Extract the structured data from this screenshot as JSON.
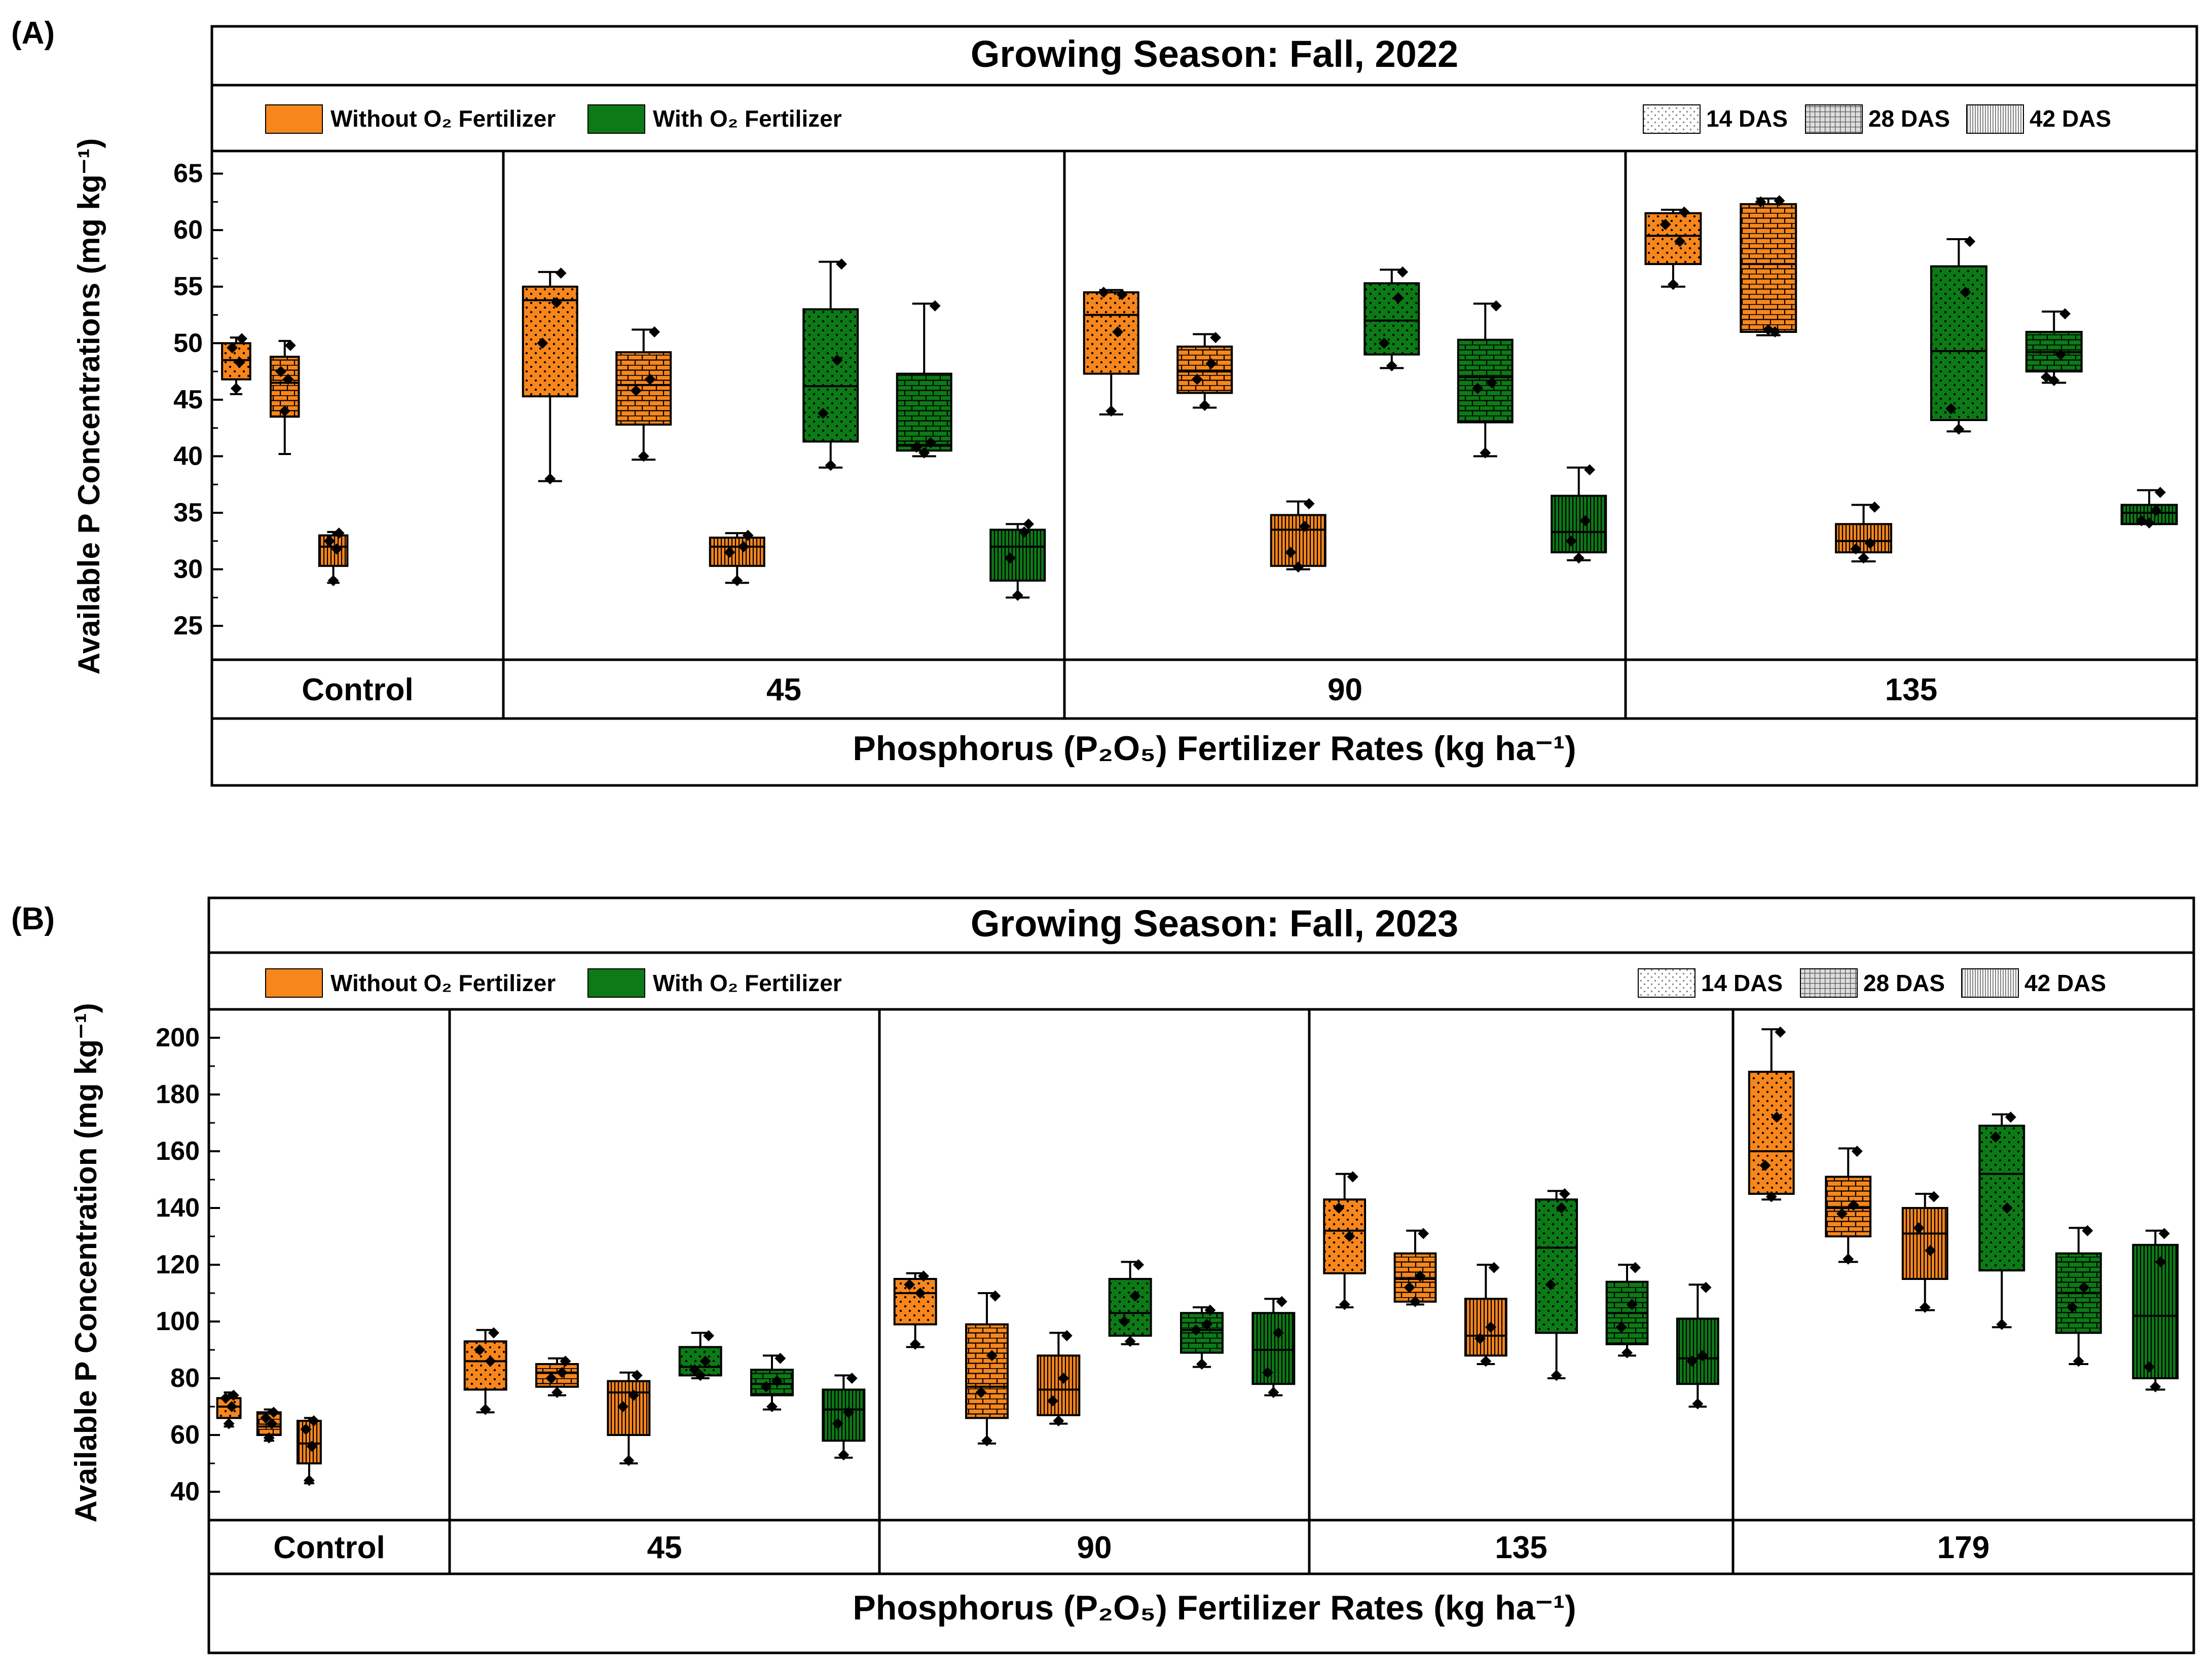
{
  "figure": {
    "colors": {
      "without": "#f7861c",
      "with": "#0c7a16",
      "stroke": "#000000",
      "frame": "#000000",
      "background": "#ffffff"
    },
    "legend_labels": {
      "without": "Without O₂ Fertilizer",
      "with": "With O₂ Fertilizer",
      "das14": "14 DAS",
      "das28": "28 DAS",
      "das42": "42 DAS"
    }
  },
  "chart_data": [
    {
      "type": "box",
      "panel_label": "(A)",
      "title": "Growing Season: Fall, 2022",
      "ylabel": "Available P Concentrations (mg kg⁻¹)",
      "xlabel": "Phosphorus (P₂O₅) Fertilizer Rates (kg ha⁻¹)",
      "ylim": [
        22,
        67
      ],
      "yticks": [
        25,
        30,
        35,
        40,
        45,
        50,
        55,
        60,
        65
      ],
      "groups": [
        {
          "label": "Control",
          "boxes": [
            {
              "fertilizer": "without",
              "das": "14 DAS",
              "min": 45.5,
              "q1": 46.8,
              "median": 48.5,
              "q3": 50.0,
              "max": 50.5,
              "points": [
                48.3,
                49.6,
                46.0,
                50.4
              ]
            },
            {
              "fertilizer": "without",
              "das": "28 DAS",
              "min": 40.2,
              "q1": 43.5,
              "median": 46.5,
              "q3": 48.8,
              "max": 50.2,
              "points": [
                46.8,
                47.5,
                44.0,
                49.8
              ]
            },
            {
              "fertilizer": "without",
              "das": "42 DAS",
              "min": 28.8,
              "q1": 30.3,
              "median": 32.0,
              "q3": 33.0,
              "max": 33.3,
              "points": [
                31.8,
                32.5,
                29.0,
                33.2
              ]
            }
          ]
        },
        {
          "label": "45",
          "boxes": [
            {
              "fertilizer": "without",
              "das": "14 DAS",
              "min": 37.8,
              "q1": 45.3,
              "median": 53.8,
              "q3": 55.0,
              "max": 56.3,
              "points": [
                53.6,
                50.0,
                38.0,
                56.2
              ]
            },
            {
              "fertilizer": "without",
              "das": "28 DAS",
              "min": 39.7,
              "q1": 42.8,
              "median": 46.3,
              "q3": 49.2,
              "max": 51.2,
              "points": [
                46.8,
                45.8,
                40.0,
                51.0
              ]
            },
            {
              "fertilizer": "without",
              "das": "42 DAS",
              "min": 28.8,
              "q1": 30.3,
              "median": 32.0,
              "q3": 32.8,
              "max": 33.2,
              "points": [
                32.0,
                31.5,
                29.0,
                33.0
              ]
            },
            {
              "fertilizer": "with",
              "das": "14 DAS",
              "min": 39.0,
              "q1": 41.3,
              "median": 46.2,
              "q3": 53.0,
              "max": 57.2,
              "points": [
                48.5,
                43.8,
                39.2,
                57.0
              ]
            },
            {
              "fertilizer": "with",
              "das": "28 DAS",
              "min": 40.0,
              "q1": 40.5,
              "median": 41.0,
              "q3": 47.3,
              "max": 53.5,
              "points": [
                41.2,
                40.8,
                40.3,
                53.3
              ]
            },
            {
              "fertilizer": "with",
              "das": "42 DAS",
              "min": 27.5,
              "q1": 29.0,
              "median": 32.0,
              "q3": 33.5,
              "max": 34.0,
              "points": [
                33.3,
                31.0,
                27.7,
                34.0
              ]
            }
          ]
        },
        {
          "label": "90",
          "boxes": [
            {
              "fertilizer": "without",
              "das": "14 DAS",
              "min": 43.7,
              "q1": 47.3,
              "median": 52.5,
              "q3": 54.5,
              "max": 54.7,
              "points": [
                51.0,
                54.5,
                44.0,
                54.3
              ]
            },
            {
              "fertilizer": "without",
              "das": "28 DAS",
              "min": 44.3,
              "q1": 45.6,
              "median": 47.5,
              "q3": 49.7,
              "max": 50.8,
              "points": [
                48.2,
                46.8,
                44.5,
                50.5
              ]
            },
            {
              "fertilizer": "without",
              "das": "42 DAS",
              "min": 30.0,
              "q1": 30.3,
              "median": 33.5,
              "q3": 34.8,
              "max": 36.0,
              "points": [
                33.8,
                31.5,
                30.2,
                35.8
              ]
            },
            {
              "fertilizer": "with",
              "das": "14 DAS",
              "min": 47.8,
              "q1": 49.0,
              "median": 52.0,
              "q3": 55.3,
              "max": 56.5,
              "points": [
                54.0,
                50.0,
                48.0,
                56.3
              ]
            },
            {
              "fertilizer": "with",
              "das": "28 DAS",
              "min": 40.0,
              "q1": 43.0,
              "median": 47.0,
              "q3": 50.3,
              "max": 53.5,
              "points": [
                46.5,
                46.0,
                40.3,
                53.3
              ]
            },
            {
              "fertilizer": "with",
              "das": "42 DAS",
              "min": 30.8,
              "q1": 31.5,
              "median": 33.3,
              "q3": 36.5,
              "max": 39.0,
              "points": [
                34.3,
                32.5,
                31.0,
                38.8
              ]
            }
          ]
        },
        {
          "label": "135",
          "boxes": [
            {
              "fertilizer": "without",
              "das": "14 DAS",
              "min": 55.0,
              "q1": 57.0,
              "median": 59.5,
              "q3": 61.5,
              "max": 61.8,
              "points": [
                59.0,
                60.5,
                55.2,
                61.6
              ]
            },
            {
              "fertilizer": "without",
              "das": "28 DAS",
              "min": 50.7,
              "q1": 51.0,
              "median": 57.0,
              "q3": 62.3,
              "max": 62.8,
              "points": [
                51.0,
                62.5,
                51.2,
                62.6
              ]
            },
            {
              "fertilizer": "without",
              "das": "42 DAS",
              "min": 30.7,
              "q1": 31.5,
              "median": 32.5,
              "q3": 34.0,
              "max": 35.7,
              "points": [
                32.3,
                31.8,
                31.0,
                35.5
              ]
            },
            {
              "fertilizer": "with",
              "das": "14 DAS",
              "min": 42.2,
              "q1": 43.2,
              "median": 49.3,
              "q3": 56.8,
              "max": 59.2,
              "points": [
                54.5,
                44.2,
                42.4,
                59.0
              ]
            },
            {
              "fertilizer": "with",
              "das": "28 DAS",
              "min": 46.5,
              "q1": 47.5,
              "median": 49.2,
              "q3": 51.0,
              "max": 52.8,
              "points": [
                49.0,
                47.0,
                46.7,
                52.6
              ]
            },
            {
              "fertilizer": "with",
              "das": "42 DAS",
              "min": 34.0,
              "q1": 34.0,
              "median": 35.0,
              "q3": 35.7,
              "max": 37.0,
              "points": [
                35.2,
                34.3,
                34.1,
                36.8
              ]
            }
          ]
        }
      ]
    },
    {
      "type": "box",
      "panel_label": "(B)",
      "title": "Growing Season: Fall, 2023",
      "ylabel": "Available P Concentration (mg kg⁻¹)",
      "xlabel": "Phosphorus (P₂O₅) Fertilizer Rates (kg ha⁻¹)",
      "ylim": [
        30,
        210
      ],
      "yticks": [
        40,
        60,
        80,
        100,
        120,
        140,
        160,
        180,
        200
      ],
      "groups": [
        {
          "label": "Control",
          "boxes": [
            {
              "fertilizer": "without",
              "das": "14 DAS",
              "min": 63,
              "q1": 66,
              "median": 70,
              "q3": 73,
              "max": 75,
              "points": [
                70,
                73,
                64,
                74
              ]
            },
            {
              "fertilizer": "without",
              "das": "28 DAS",
              "min": 58,
              "q1": 60,
              "median": 63,
              "q3": 68,
              "max": 69,
              "points": [
                64,
                66,
                59,
                68
              ]
            },
            {
              "fertilizer": "without",
              "das": "42 DAS",
              "min": 43,
              "q1": 50,
              "median": 57,
              "q3": 65,
              "max": 66,
              "points": [
                56,
                62,
                44,
                65
              ]
            }
          ]
        },
        {
          "label": "45",
          "boxes": [
            {
              "fertilizer": "without",
              "das": "14 DAS",
              "min": 68,
              "q1": 76,
              "median": 86,
              "q3": 93,
              "max": 97,
              "points": [
                86,
                90,
                69,
                96
              ]
            },
            {
              "fertilizer": "without",
              "das": "28 DAS",
              "min": 74,
              "q1": 77,
              "median": 82,
              "q3": 85,
              "max": 87,
              "points": [
                82,
                80,
                75,
                86
              ]
            },
            {
              "fertilizer": "without",
              "das": "42 DAS",
              "min": 50,
              "q1": 60,
              "median": 75,
              "q3": 79,
              "max": 82,
              "points": [
                74,
                70,
                51,
                81
              ]
            },
            {
              "fertilizer": "with",
              "das": "14 DAS",
              "min": 80,
              "q1": 81,
              "median": 84,
              "q3": 91,
              "max": 96,
              "points": [
                86,
                83,
                81,
                95
              ]
            },
            {
              "fertilizer": "with",
              "das": "28 DAS",
              "min": 69,
              "q1": 74,
              "median": 78,
              "q3": 83,
              "max": 88,
              "points": [
                79,
                77,
                70,
                87
              ]
            },
            {
              "fertilizer": "with",
              "das": "42 DAS",
              "min": 52,
              "q1": 58,
              "median": 69,
              "q3": 76,
              "max": 81,
              "points": [
                68,
                64,
                53,
                80
              ]
            }
          ]
        },
        {
          "label": "90",
          "boxes": [
            {
              "fertilizer": "without",
              "das": "14 DAS",
              "min": 91,
              "q1": 99,
              "median": 110,
              "q3": 115,
              "max": 117,
              "points": [
                110,
                113,
                92,
                116
              ]
            },
            {
              "fertilizer": "without",
              "das": "28 DAS",
              "min": 57,
              "q1": 66,
              "median": 77,
              "q3": 99,
              "max": 110,
              "points": [
                88,
                75,
                58,
                109
              ]
            },
            {
              "fertilizer": "without",
              "das": "42 DAS",
              "min": 64,
              "q1": 67,
              "median": 76,
              "q3": 88,
              "max": 96,
              "points": [
                80,
                72,
                65,
                95
              ]
            },
            {
              "fertilizer": "with",
              "das": "14 DAS",
              "min": 92,
              "q1": 95,
              "median": 103,
              "q3": 115,
              "max": 121,
              "points": [
                109,
                100,
                93,
                120
              ]
            },
            {
              "fertilizer": "with",
              "das": "28 DAS",
              "min": 84,
              "q1": 89,
              "median": 97,
              "q3": 103,
              "max": 105,
              "points": [
                99,
                97,
                85,
                104
              ]
            },
            {
              "fertilizer": "with",
              "das": "42 DAS",
              "min": 74,
              "q1": 78,
              "median": 90,
              "q3": 103,
              "max": 108,
              "points": [
                96,
                82,
                75,
                107
              ]
            }
          ]
        },
        {
          "label": "135",
          "boxes": [
            {
              "fertilizer": "without",
              "das": "14 DAS",
              "min": 105,
              "q1": 117,
              "median": 132,
              "q3": 143,
              "max": 152,
              "points": [
                130,
                140,
                106,
                151
              ]
            },
            {
              "fertilizer": "without",
              "das": "28 DAS",
              "min": 106,
              "q1": 107,
              "median": 115,
              "q3": 124,
              "max": 132,
              "points": [
                116,
                112,
                107,
                131
              ]
            },
            {
              "fertilizer": "without",
              "das": "42 DAS",
              "min": 85,
              "q1": 88,
              "median": 95,
              "q3": 108,
              "max": 120,
              "points": [
                98,
                94,
                86,
                119
              ]
            },
            {
              "fertilizer": "with",
              "das": "14 DAS",
              "min": 80,
              "q1": 96,
              "median": 126,
              "q3": 143,
              "max": 146,
              "points": [
                140,
                113,
                81,
                145
              ]
            },
            {
              "fertilizer": "with",
              "das": "28 DAS",
              "min": 88,
              "q1": 92,
              "median": 103,
              "q3": 114,
              "max": 120,
              "points": [
                106,
                98,
                89,
                119
              ]
            },
            {
              "fertilizer": "with",
              "das": "42 DAS",
              "min": 70,
              "q1": 78,
              "median": 87,
              "q3": 101,
              "max": 113,
              "points": [
                88,
                86,
                71,
                112
              ]
            }
          ]
        },
        {
          "label": "179",
          "boxes": [
            {
              "fertilizer": "without",
              "das": "14 DAS",
              "min": 143,
              "q1": 145,
              "median": 160,
              "q3": 188,
              "max": 203,
              "points": [
                172,
                155,
                144,
                202
              ]
            },
            {
              "fertilizer": "without",
              "das": "28 DAS",
              "min": 121,
              "q1": 130,
              "median": 140,
              "q3": 151,
              "max": 161,
              "points": [
                141,
                138,
                122,
                160
              ]
            },
            {
              "fertilizer": "without",
              "das": "42 DAS",
              "min": 104,
              "q1": 115,
              "median": 131,
              "q3": 140,
              "max": 145,
              "points": [
                125,
                133,
                105,
                144
              ]
            },
            {
              "fertilizer": "with",
              "das": "14 DAS",
              "min": 98,
              "q1": 118,
              "median": 152,
              "q3": 169,
              "max": 173,
              "points": [
                140,
                165,
                99,
                172
              ]
            },
            {
              "fertilizer": "with",
              "das": "28 DAS",
              "min": 85,
              "q1": 96,
              "median": 110,
              "q3": 124,
              "max": 133,
              "points": [
                112,
                105,
                86,
                132
              ]
            },
            {
              "fertilizer": "with",
              "das": "42 DAS",
              "min": 76,
              "q1": 80,
              "median": 102,
              "q3": 127,
              "max": 132,
              "points": [
                121,
                84,
                77,
                131
              ]
            }
          ]
        }
      ]
    }
  ]
}
